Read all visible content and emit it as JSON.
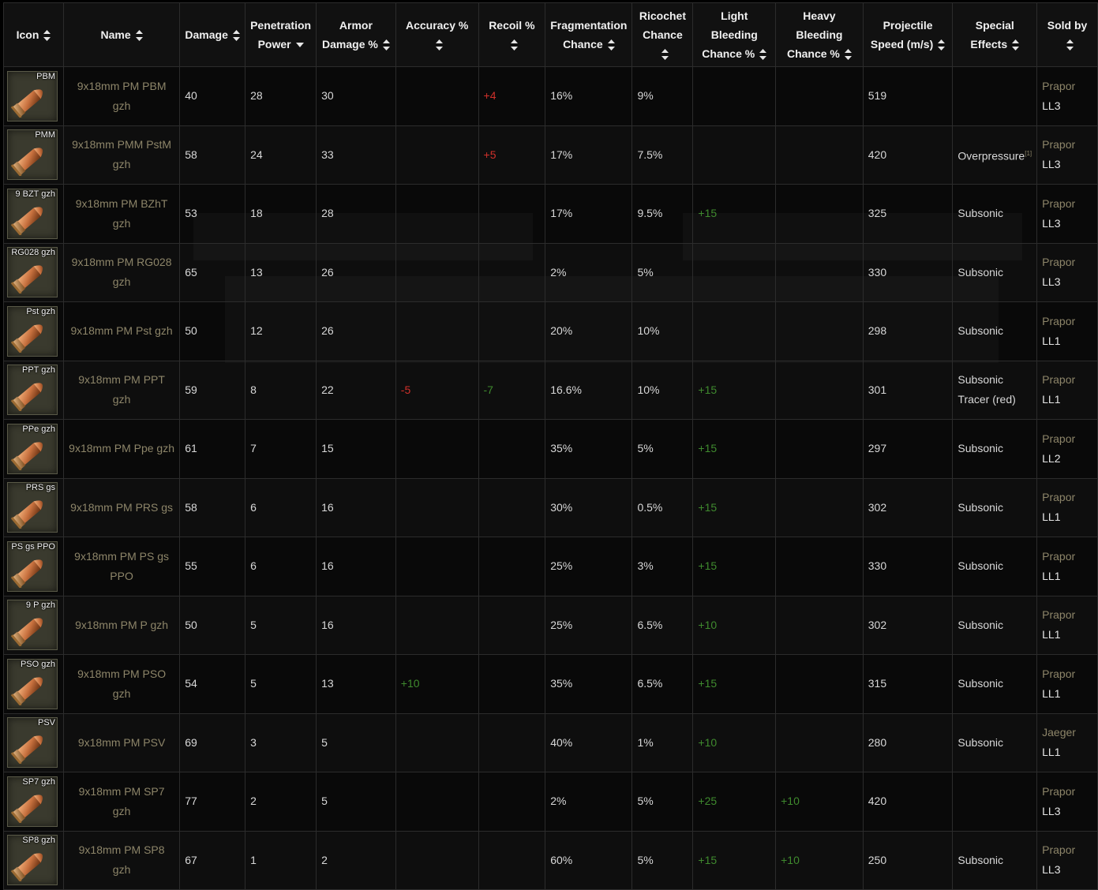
{
  "columns": [
    {
      "label": "Icon",
      "sort": "both"
    },
    {
      "label": "Name",
      "sort": "both"
    },
    {
      "label": "Damage",
      "sort": "both"
    },
    {
      "label": "Penetration Power",
      "sort": "desc"
    },
    {
      "label": "Armor Damage %",
      "sort": "both"
    },
    {
      "label": "Accuracy %",
      "sort": "both"
    },
    {
      "label": "Recoil %",
      "sort": "both"
    },
    {
      "label": "Fragmentation Chance",
      "sort": "both"
    },
    {
      "label": "Ricochet Chance",
      "sort": "both"
    },
    {
      "label": "Light Bleeding Chance %",
      "sort": "both"
    },
    {
      "label": "Heavy Bleeding Chance %",
      "sort": "both"
    },
    {
      "label": "Projectile Speed (m/s)",
      "sort": "both"
    },
    {
      "label": "Special Effects",
      "sort": "both"
    },
    {
      "label": "Sold by",
      "sort": "both"
    }
  ],
  "rows": [
    {
      "icon_label": "PBM",
      "name": "9x18mm PM PBM gzh",
      "damage": "40",
      "penetration": "28",
      "armor_damage": "30",
      "accuracy": "",
      "recoil": "+4",
      "recoil_color": "red",
      "fragmentation": "16%",
      "ricochet": "9%",
      "light_bleed": "",
      "heavy_bleed": "",
      "speed": "519",
      "effects": [
        "",
        ""
      ],
      "footnote": "",
      "vendor": "Prapor",
      "level": "LL3"
    },
    {
      "icon_label": "PMM",
      "name": "9x18mm PMM PstM gzh",
      "damage": "58",
      "penetration": "24",
      "armor_damage": "33",
      "accuracy": "",
      "recoil": "+5",
      "recoil_color": "red",
      "fragmentation": "17%",
      "ricochet": "7.5%",
      "light_bleed": "",
      "heavy_bleed": "",
      "speed": "420",
      "effects": [
        "Overpressure",
        ""
      ],
      "footnote": "[1]",
      "vendor": "Prapor",
      "level": "LL3"
    },
    {
      "icon_label": "9 BZT gzh",
      "name": "9x18mm PM BZhT gzh",
      "damage": "53",
      "penetration": "18",
      "armor_damage": "28",
      "accuracy": "",
      "recoil": "",
      "recoil_color": "",
      "fragmentation": "17%",
      "ricochet": "9.5%",
      "light_bleed": "+15",
      "heavy_bleed": "",
      "speed": "325",
      "effects": [
        "Subsonic",
        ""
      ],
      "footnote": "",
      "vendor": "Prapor",
      "level": "LL3"
    },
    {
      "icon_label": "RG028 gzh",
      "name": "9x18mm PM RG028 gzh",
      "damage": "65",
      "penetration": "13",
      "armor_damage": "26",
      "accuracy": "",
      "recoil": "",
      "recoil_color": "",
      "fragmentation": "2%",
      "ricochet": "5%",
      "light_bleed": "",
      "heavy_bleed": "",
      "speed": "330",
      "effects": [
        "Subsonic",
        ""
      ],
      "footnote": "",
      "vendor": "Prapor",
      "level": "LL3"
    },
    {
      "icon_label": "Pst gzh",
      "name": "9x18mm PM Pst gzh",
      "damage": "50",
      "penetration": "12",
      "armor_damage": "26",
      "accuracy": "",
      "recoil": "",
      "recoil_color": "",
      "fragmentation": "20%",
      "ricochet": "10%",
      "light_bleed": "",
      "heavy_bleed": "",
      "speed": "298",
      "effects": [
        "Subsonic",
        ""
      ],
      "footnote": "",
      "vendor": "Prapor",
      "level": "LL1"
    },
    {
      "icon_label": "PPT gzh",
      "name": "9x18mm PM PPT gzh",
      "damage": "59",
      "penetration": "8",
      "armor_damage": "22",
      "accuracy": "-5",
      "accuracy_color": "red",
      "recoil": "-7",
      "recoil_color": "green",
      "fragmentation": "16.6%",
      "ricochet": "10%",
      "light_bleed": "+15",
      "heavy_bleed": "",
      "speed": "301",
      "effects": [
        "Subsonic",
        "Tracer (red)"
      ],
      "footnote": "",
      "vendor": "Prapor",
      "level": "LL1"
    },
    {
      "icon_label": "PPe gzh",
      "name": "9x18mm PM Ppe gzh",
      "damage": "61",
      "penetration": "7",
      "armor_damage": "15",
      "accuracy": "",
      "recoil": "",
      "recoil_color": "",
      "fragmentation": "35%",
      "ricochet": "5%",
      "light_bleed": "+15",
      "heavy_bleed": "",
      "speed": "297",
      "effects": [
        "Subsonic",
        ""
      ],
      "footnote": "",
      "vendor": "Prapor",
      "level": "LL2"
    },
    {
      "icon_label": "PRS gs",
      "name": "9x18mm PM PRS gs",
      "damage": "58",
      "penetration": "6",
      "armor_damage": "16",
      "accuracy": "",
      "recoil": "",
      "recoil_color": "",
      "fragmentation": "30%",
      "ricochet": "0.5%",
      "light_bleed": "+15",
      "heavy_bleed": "",
      "speed": "302",
      "effects": [
        "Subsonic",
        ""
      ],
      "footnote": "",
      "vendor": "Prapor",
      "level": "LL1"
    },
    {
      "icon_label": "PS gs PPO",
      "name": "9x18mm PM PS gs PPO",
      "damage": "55",
      "penetration": "6",
      "armor_damage": "16",
      "accuracy": "",
      "recoil": "",
      "recoil_color": "",
      "fragmentation": "25%",
      "ricochet": "3%",
      "light_bleed": "+15",
      "heavy_bleed": "",
      "speed": "330",
      "effects": [
        "Subsonic",
        ""
      ],
      "footnote": "",
      "vendor": "Prapor",
      "level": "LL1"
    },
    {
      "icon_label": "9 P gzh",
      "name": "9x18mm PM P gzh",
      "damage": "50",
      "penetration": "5",
      "armor_damage": "16",
      "accuracy": "",
      "recoil": "",
      "recoil_color": "",
      "fragmentation": "25%",
      "ricochet": "6.5%",
      "light_bleed": "+10",
      "heavy_bleed": "",
      "speed": "302",
      "effects": [
        "Subsonic",
        ""
      ],
      "footnote": "",
      "vendor": "Prapor",
      "level": "LL1"
    },
    {
      "icon_label": "PSO gzh",
      "name": "9x18mm PM PSO gzh",
      "damage": "54",
      "penetration": "5",
      "armor_damage": "13",
      "accuracy": "+10",
      "accuracy_color": "green",
      "recoil": "",
      "recoil_color": "",
      "fragmentation": "35%",
      "ricochet": "6.5%",
      "light_bleed": "+15",
      "heavy_bleed": "",
      "speed": "315",
      "effects": [
        "Subsonic",
        ""
      ],
      "footnote": "",
      "vendor": "Prapor",
      "level": "LL1"
    },
    {
      "icon_label": "PSV",
      "name": "9x18mm PM PSV",
      "damage": "69",
      "penetration": "3",
      "armor_damage": "5",
      "accuracy": "",
      "recoil": "",
      "recoil_color": "",
      "fragmentation": "40%",
      "ricochet": "1%",
      "light_bleed": "+10",
      "heavy_bleed": "",
      "speed": "280",
      "effects": [
        "Subsonic",
        ""
      ],
      "footnote": "",
      "vendor": "Jaeger",
      "level": "LL1"
    },
    {
      "icon_label": "SP7 gzh",
      "name": "9x18mm PM SP7 gzh",
      "damage": "77",
      "penetration": "2",
      "armor_damage": "5",
      "accuracy": "",
      "recoil": "",
      "recoil_color": "",
      "fragmentation": "2%",
      "ricochet": "5%",
      "light_bleed": "+25",
      "heavy_bleed": "+10",
      "speed": "420",
      "effects": [
        "",
        ""
      ],
      "footnote": "",
      "vendor": "Prapor",
      "level": "LL3"
    },
    {
      "icon_label": "SP8 gzh",
      "name": "9x18mm PM SP8 gzh",
      "damage": "67",
      "penetration": "1",
      "armor_damage": "2",
      "accuracy": "",
      "recoil": "",
      "recoil_color": "",
      "fragmentation": "60%",
      "ricochet": "5%",
      "light_bleed": "+15",
      "heavy_bleed": "+10",
      "speed": "250",
      "effects": [
        "Subsonic",
        ""
      ],
      "footnote": "",
      "vendor": "Prapor",
      "level": "LL3"
    }
  ],
  "colors": {
    "positive": "#3f8a2e",
    "negative": "#d0302a",
    "vendor": "#8d8569",
    "name_link": "#8d8569",
    "header_text": "#f0f0f0",
    "cell_text": "#d8d8d8"
  },
  "icons": {
    "sort_both": "sort-both-icon",
    "sort_desc": "sort-desc-icon",
    "ammo": "bullet-cartridge-icon"
  }
}
